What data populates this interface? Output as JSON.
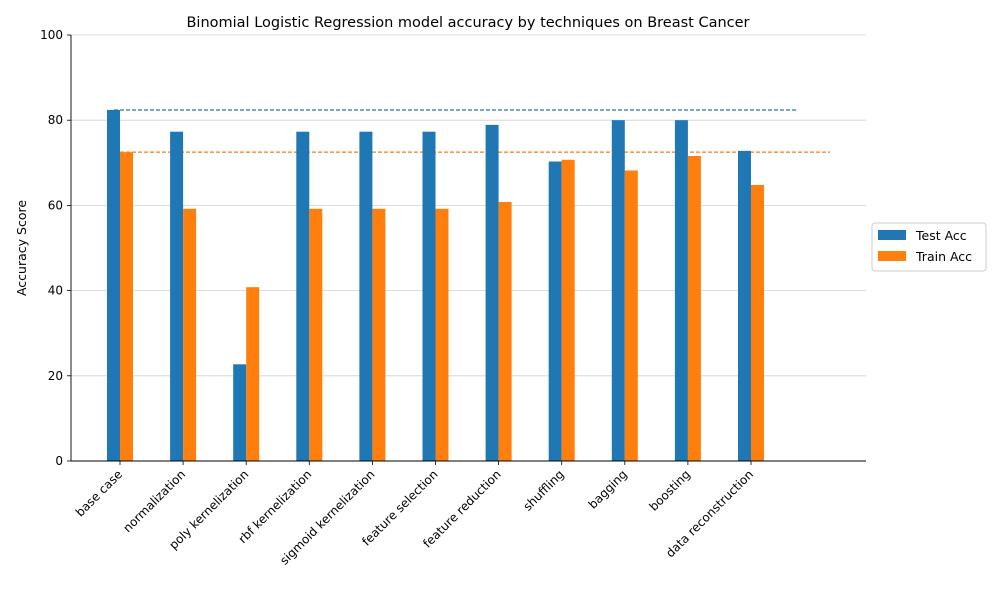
{
  "chart_data": {
    "type": "bar",
    "title": "Binomial Logistic Regression model accuracy by techniques on Breast Cancer",
    "xlabel": "",
    "ylabel": "Accuracy Score",
    "ylim": [
      0,
      100
    ],
    "yticks": [
      0,
      20,
      40,
      60,
      80,
      100
    ],
    "grid": "horizontal",
    "legend_position": "right",
    "categories": [
      "base case",
      "normalization",
      "poly kernelization",
      "rbf kernelization",
      "sigmoid kernelization",
      "feature selection",
      "feature reduction",
      "shuffling",
      "bagging",
      "boosting",
      "data reconstruction"
    ],
    "series": [
      {
        "name": "Test Acc",
        "color": "#1f77b4",
        "values": [
          82.4,
          77.3,
          22.7,
          77.3,
          77.3,
          77.3,
          78.9,
          70.3,
          80.0,
          80.0,
          72.8
        ]
      },
      {
        "name": "Train Acc",
        "color": "#ff7f0e",
        "values": [
          72.5,
          59.2,
          40.8,
          59.2,
          59.2,
          59.2,
          60.8,
          70.7,
          68.2,
          71.6,
          64.8
        ]
      }
    ],
    "reference_lines": [
      {
        "series": "Test Acc",
        "value": 82.4,
        "color": "#1f77b4",
        "style": "dashed"
      },
      {
        "series": "Train Acc",
        "value": 72.5,
        "color": "#ff7f0e",
        "style": "dashed"
      }
    ]
  }
}
